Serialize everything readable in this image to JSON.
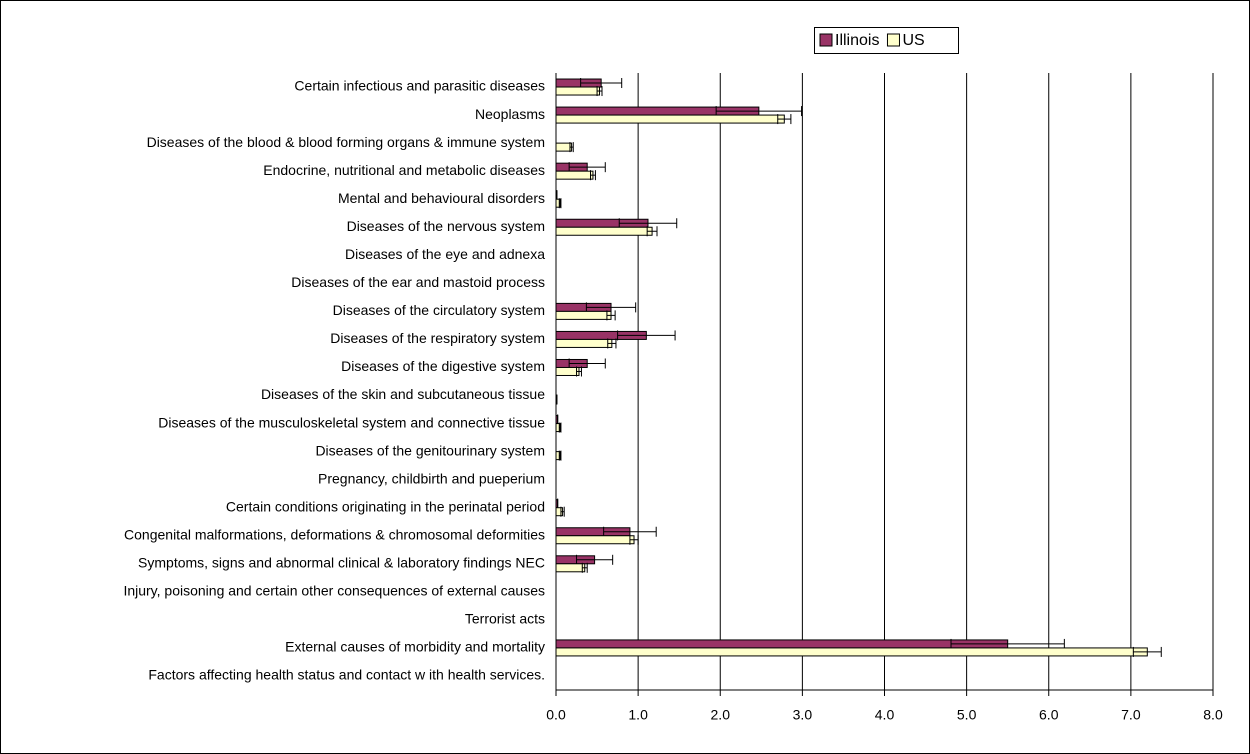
{
  "chart_data": {
    "type": "bar",
    "orientation": "horizontal",
    "categories": [
      "Certain infectious and parasitic diseases",
      "Neoplasms",
      "Diseases of the blood & blood forming organs & immune system",
      "Endocrine, nutritional and metabolic diseases",
      "Mental and behavioural disorders",
      "Diseases of the nervous system",
      "Diseases of the eye and adnexa",
      "Diseases of the ear and mastoid process",
      "Diseases of the circulatory system",
      "Diseases of the respiratory system",
      "Diseases of the digestive system",
      "Diseases of the skin and subcutaneous tissue",
      "Diseases of the musculoskeletal system and connective tissue",
      "Diseases of the genitourinary system",
      "Pregnancy, childbirth and pueperium",
      "Certain conditions originating in the perinatal period",
      "Congenital malformations, deformations & chromosomal deformities",
      "Symptoms, signs and abnormal clinical & laboratory findings NEC",
      "Injury, poisoning and certain other consequences of external causes",
      "Terrorist acts",
      "External causes of morbidity and mortality",
      "Factors affecting health status and contact w ith health services."
    ],
    "series": [
      {
        "name": "Illinois",
        "color": "#993366",
        "values": [
          0.55,
          2.47,
          0,
          0.38,
          0.01,
          1.12,
          0,
          0,
          0.67,
          1.1,
          0.38,
          0,
          0.02,
          0,
          0,
          0.02,
          0.9,
          0.47,
          0,
          0,
          5.5,
          0
        ],
        "errors": [
          0.25,
          0.52,
          0,
          0.22,
          0,
          0.35,
          0,
          0,
          0.3,
          0.35,
          0.22,
          0,
          0,
          0,
          0,
          0,
          0.32,
          0.22,
          0,
          0,
          0.69,
          0
        ]
      },
      {
        "name": "US",
        "color": "#ffffcc",
        "values": [
          0.53,
          2.78,
          0.19,
          0.45,
          0.05,
          1.17,
          0,
          0,
          0.67,
          0.68,
          0.28,
          0.01,
          0.05,
          0.05,
          0,
          0.08,
          0.95,
          0.35,
          0,
          0,
          7.2,
          0
        ],
        "errors": [
          0.03,
          0.08,
          0.02,
          0.03,
          0.01,
          0.06,
          0,
          0,
          0.05,
          0.05,
          0.03,
          0,
          0.01,
          0.01,
          0,
          0.02,
          0.05,
          0.03,
          0,
          0,
          0.17,
          0
        ]
      }
    ],
    "xlim": [
      0,
      8
    ],
    "xticks": [
      {
        "value": 0,
        "label": "0.0"
      },
      {
        "value": 1,
        "label": "1.0"
      },
      {
        "value": 2,
        "label": "2.0"
      },
      {
        "value": 3,
        "label": "3.0"
      },
      {
        "value": 4,
        "label": "4.0"
      },
      {
        "value": 5,
        "label": "5.0"
      },
      {
        "value": 6,
        "label": "6.0"
      },
      {
        "value": 7,
        "label": "7.0"
      },
      {
        "value": 8,
        "label": "8.0"
      }
    ],
    "grid": true,
    "legend": "top"
  }
}
